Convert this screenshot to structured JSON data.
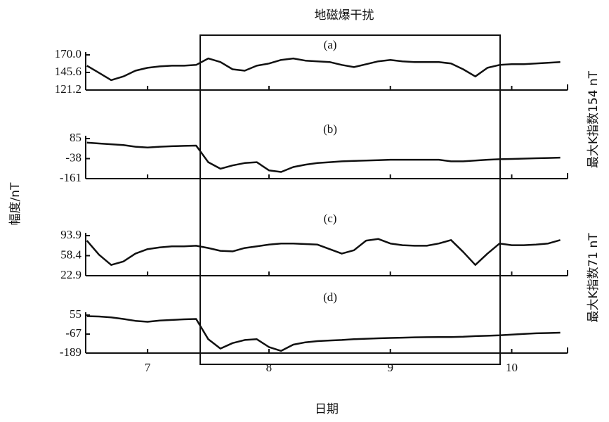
{
  "title": "地磁爆干扰",
  "x_label": "日期",
  "y_label": "幅度/nT",
  "annotations": [
    "最大K指数154 nT",
    "最大K指数71 nT"
  ],
  "chart_data": [
    {
      "type": "line",
      "title": "(a)",
      "x": [
        6.5,
        6.6,
        6.7,
        6.8,
        6.9,
        7.0,
        7.1,
        7.2,
        7.3,
        7.4,
        7.5,
        7.6,
        7.7,
        7.8,
        7.9,
        8.0,
        8.1,
        8.2,
        8.3,
        8.4,
        8.5,
        8.6,
        8.7,
        8.8,
        8.9,
        9.0,
        9.1,
        9.2,
        9.3,
        9.4,
        9.5,
        9.6,
        9.7,
        9.8,
        9.9,
        10.0,
        10.1,
        10.2,
        10.3,
        10.4
      ],
      "values": [
        155,
        145,
        135,
        140,
        148,
        152,
        154,
        155,
        155,
        156,
        165,
        160,
        150,
        148,
        155,
        158,
        163,
        165,
        162,
        161,
        160,
        156,
        153,
        157,
        161,
        163,
        161,
        160,
        160,
        160,
        158,
        150,
        140,
        152,
        156,
        157,
        157,
        158,
        159,
        160
      ],
      "color": "#111111",
      "xlim": [
        6.49,
        10.46
      ],
      "xticks": [
        7,
        8,
        9,
        10
      ],
      "ylim": [
        121.2,
        170
      ],
      "yticks": [
        121.2,
        145.6,
        {
          "value": 170,
          "label": "170.0"
        }
      ]
    },
    {
      "type": "line",
      "title": "(b)",
      "x": [
        6.5,
        6.6,
        6.7,
        6.8,
        6.9,
        7.0,
        7.1,
        7.2,
        7.3,
        7.4,
        7.5,
        7.6,
        7.7,
        7.8,
        7.9,
        8.0,
        8.1,
        8.2,
        8.3,
        8.4,
        8.5,
        8.6,
        8.7,
        8.8,
        8.9,
        9.0,
        9.1,
        9.2,
        9.3,
        9.4,
        9.5,
        9.6,
        9.7,
        9.8,
        9.9,
        10.0,
        10.1,
        10.2,
        10.3,
        10.4
      ],
      "values": [
        60,
        55,
        50,
        45,
        35,
        30,
        35,
        38,
        40,
        42,
        -60,
        -100,
        -80,
        -65,
        -60,
        -110,
        -120,
        -90,
        -75,
        -65,
        -60,
        -55,
        -52,
        -50,
        -48,
        -45,
        -45,
        -45,
        -45,
        -45,
        -55,
        -55,
        -50,
        -45,
        -42,
        -40,
        -38,
        -36,
        -34,
        -32
      ],
      "color": "#111111",
      "xlim": [
        6.49,
        10.46
      ],
      "xticks": [
        7,
        8,
        9,
        10
      ],
      "ylim": [
        -161,
        85
      ],
      "yticks": [
        -161,
        -38,
        85
      ]
    },
    {
      "type": "line",
      "title": "(c)",
      "x": [
        6.5,
        6.6,
        6.7,
        6.8,
        6.9,
        7.0,
        7.1,
        7.2,
        7.3,
        7.4,
        7.5,
        7.6,
        7.7,
        7.8,
        7.9,
        8.0,
        8.1,
        8.2,
        8.3,
        8.4,
        8.5,
        8.6,
        8.7,
        8.8,
        8.9,
        9.0,
        9.1,
        9.2,
        9.3,
        9.4,
        9.5,
        9.6,
        9.7,
        9.8,
        9.9,
        10.0,
        10.1,
        10.2,
        10.3,
        10.4
      ],
      "values": [
        85,
        60,
        42,
        48,
        62,
        70,
        73,
        75,
        75,
        76,
        72,
        67,
        66,
        72,
        75,
        78,
        80,
        80,
        79,
        78,
        70,
        62,
        68,
        85,
        88,
        80,
        77,
        76,
        76,
        80,
        86,
        65,
        42,
        62,
        80,
        77,
        77,
        78,
        80,
        86
      ],
      "color": "#111111",
      "xlim": [
        6.49,
        10.46
      ],
      "xticks": [
        7,
        8,
        9,
        10
      ],
      "ylim": [
        22.9,
        93.9
      ],
      "yticks": [
        22.9,
        58.4,
        93.9
      ]
    },
    {
      "type": "line",
      "title": "(d)",
      "x": [
        6.5,
        6.6,
        6.7,
        6.8,
        6.9,
        7.0,
        7.1,
        7.2,
        7.3,
        7.4,
        7.5,
        7.6,
        7.7,
        7.8,
        7.9,
        8.0,
        8.1,
        8.2,
        8.3,
        8.4,
        8.5,
        8.6,
        8.7,
        8.8,
        8.9,
        9.0,
        9.1,
        9.2,
        9.3,
        9.4,
        9.5,
        9.6,
        9.7,
        9.8,
        9.9,
        10.0,
        10.1,
        10.2,
        10.3,
        10.4
      ],
      "values": [
        48,
        46,
        40,
        30,
        18,
        12,
        20,
        24,
        28,
        30,
        -100,
        -160,
        -125,
        -105,
        -100,
        -150,
        -175,
        -135,
        -120,
        -112,
        -108,
        -105,
        -100,
        -97,
        -94,
        -92,
        -90,
        -88,
        -87,
        -86,
        -86,
        -84,
        -80,
        -78,
        -75,
        -70,
        -66,
        -62,
        -60,
        -58
      ],
      "color": "#111111",
      "xlim": [
        6.49,
        10.46
      ],
      "xticks": [
        7,
        8,
        9,
        10
      ],
      "ylim": [
        -189,
        55
      ],
      "yticks": [
        -189,
        -67,
        55
      ]
    }
  ]
}
